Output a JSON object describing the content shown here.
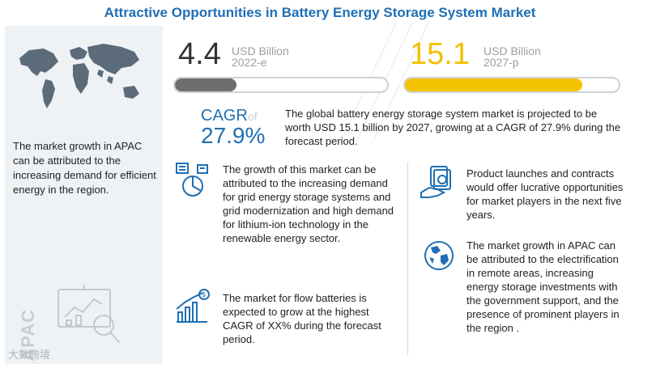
{
  "title": "Attractive Opportunities in Battery Energy Storage System Market",
  "left_panel": {
    "text": "The market growth in APAC can be attributed to the increasing demand for efficient energy in the region.",
    "vertical_label": "APAC"
  },
  "watermark": "大数跨境",
  "stat_2022": {
    "value": "4.4",
    "unit": "USD Billion",
    "period": "2022-e",
    "bar_fraction": 0.29,
    "color": "#6e6e6e"
  },
  "stat_2027": {
    "value": "15.1",
    "unit": "USD Billion",
    "period": "2027-p",
    "bar_fraction": 0.83,
    "color": "#f5c400"
  },
  "cagr": {
    "label": "CAGR",
    "of": "of",
    "value": "27.9%",
    "description": "The global battery energy storage system market is projected to be worth USD 15.1 billion by 2027, growing at a CAGR of 27.9% during the forecast period."
  },
  "insights": {
    "growth": "The growth of this market can be attributed to the increasing demand for grid energy storage systems and grid modernization and high demand for lithium-ion technology in the renewable energy sector.",
    "flow_batteries": "The market for flow batteries is expected to grow at the highest CAGR of XX% during the forecast period.",
    "product_launches": "Product launches and contracts would offer lucrative opportunities for market players in the next five years.",
    "apac": "The market growth in APAC can be attributed to the electrification in remote areas, increasing energy storage investments with the government support, and the presence of prominent players in the region ."
  },
  "colors": {
    "accent": "#1f6fb4",
    "gray_bar": "#6e6e6e",
    "yellow_bar": "#f5c400"
  }
}
